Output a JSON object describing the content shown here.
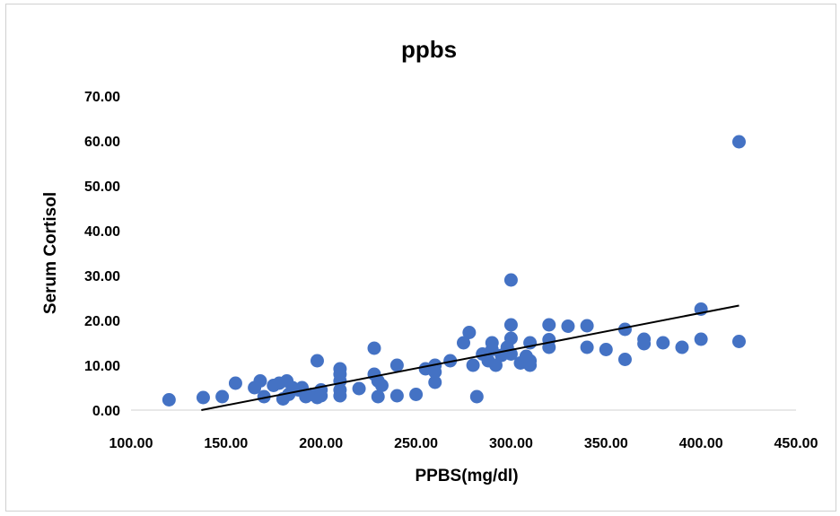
{
  "chart_data": {
    "type": "scatter",
    "title": "ppbs",
    "xlabel": "PPBS(mg/dl)",
    "ylabel": "Serum Cortisol",
    "xlim": [
      100,
      450
    ],
    "ylim": [
      0,
      70
    ],
    "x_ticks": [
      "100.00",
      "150.00",
      "200.00",
      "250.00",
      "300.00",
      "350.00",
      "400.00",
      "450.00"
    ],
    "y_ticks": [
      "0.00",
      "10.00",
      "20.00",
      "30.00",
      "40.00",
      "50.00",
      "60.00",
      "70.00"
    ],
    "grid": false,
    "legend": "none",
    "marker_color": "#4472c4",
    "trendline": {
      "type": "linear",
      "color": "#000000",
      "x": [
        137,
        420
      ],
      "y": [
        0,
        23.3
      ]
    },
    "points": [
      [
        120,
        2.3
      ],
      [
        138,
        2.8
      ],
      [
        148,
        3.0
      ],
      [
        155,
        6.0
      ],
      [
        165,
        5.0
      ],
      [
        168,
        6.5
      ],
      [
        170,
        3.0
      ],
      [
        175,
        5.5
      ],
      [
        178,
        6.0
      ],
      [
        180,
        2.5
      ],
      [
        182,
        6.5
      ],
      [
        183,
        3.5
      ],
      [
        185,
        5.0
      ],
      [
        188,
        4.5
      ],
      [
        190,
        5.0
      ],
      [
        192,
        3.0
      ],
      [
        195,
        3.5
      ],
      [
        198,
        2.8
      ],
      [
        198,
        11.0
      ],
      [
        200,
        4.5
      ],
      [
        200,
        3.2
      ],
      [
        210,
        9.2
      ],
      [
        210,
        8.0
      ],
      [
        210,
        6.5
      ],
      [
        210,
        4.5
      ],
      [
        210,
        3.2
      ],
      [
        220,
        4.8
      ],
      [
        228,
        13.8
      ],
      [
        228,
        8.0
      ],
      [
        230,
        6.5
      ],
      [
        232,
        5.5
      ],
      [
        230,
        3.0
      ],
      [
        240,
        10.0
      ],
      [
        240,
        3.2
      ],
      [
        250,
        3.5
      ],
      [
        255,
        9.2
      ],
      [
        260,
        10.0
      ],
      [
        260,
        8.5
      ],
      [
        260,
        6.2
      ],
      [
        268,
        11.0
      ],
      [
        275,
        15.0
      ],
      [
        278,
        17.3
      ],
      [
        280,
        10.0
      ],
      [
        282,
        3.0
      ],
      [
        285,
        12.5
      ],
      [
        288,
        11.0
      ],
      [
        290,
        15.0
      ],
      [
        290,
        13.5
      ],
      [
        292,
        10.0
      ],
      [
        295,
        12.2
      ],
      [
        298,
        14.0
      ],
      [
        300,
        29.0
      ],
      [
        300,
        19.0
      ],
      [
        300,
        16.0
      ],
      [
        300,
        12.5
      ],
      [
        305,
        10.5
      ],
      [
        308,
        12.0
      ],
      [
        310,
        15.0
      ],
      [
        310,
        11.0
      ],
      [
        310,
        10.0
      ],
      [
        320,
        19.0
      ],
      [
        320,
        15.7
      ],
      [
        320,
        14.0
      ],
      [
        330,
        18.7
      ],
      [
        340,
        18.8
      ],
      [
        340,
        14.0
      ],
      [
        350,
        13.5
      ],
      [
        360,
        18.0
      ],
      [
        360,
        11.3
      ],
      [
        370,
        15.8
      ],
      [
        370,
        14.8
      ],
      [
        380,
        15.0
      ],
      [
        390,
        14.0
      ],
      [
        400,
        22.5
      ],
      [
        400,
        15.8
      ],
      [
        420,
        59.8
      ],
      [
        420,
        15.3
      ]
    ]
  }
}
